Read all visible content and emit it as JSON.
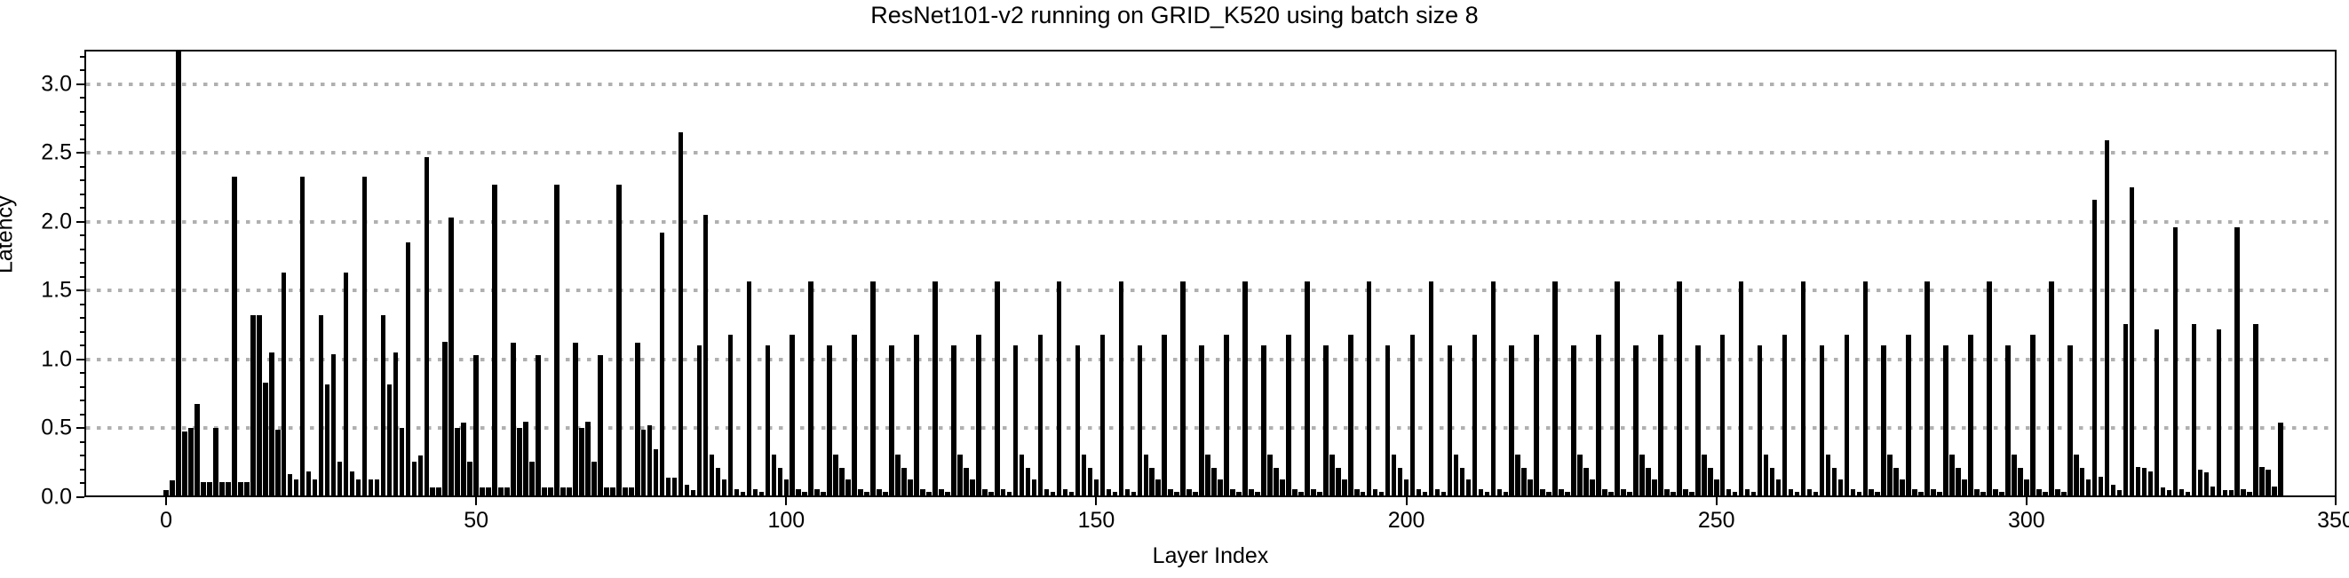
{
  "chart_data": {
    "type": "bar",
    "title": "ResNet101-v2 running on GRID_K520 using batch size 8",
    "xlabel": "Layer Index",
    "ylabel": "Latency",
    "xlim": [
      -13.18,
      350
    ],
    "ylim": [
      0,
      3.25
    ],
    "x_ticks": [
      0,
      50,
      100,
      150,
      200,
      250,
      300,
      350
    ],
    "y_ticks": [
      "0.0",
      "0.5",
      "1.0",
      "1.5",
      "2.0",
      "2.5",
      "3.0"
    ],
    "y_minor_tick_step": 0.1,
    "grid": "horizontal dotted at 0.5 intervals",
    "legend_position": "none",
    "bar_color": "#000000",
    "grid_color": "#b0b0b0",
    "bar_width_units": 0.8,
    "x_start_index": 0,
    "note_clipped_bar": "bar at layer 2 exceeds the y-axis top and is clipped",
    "values": [
      0.05,
      0.12,
      3.45,
      0.48,
      0.5,
      0.68,
      0.11,
      0.11,
      0.5,
      0.11,
      0.11,
      2.33,
      0.11,
      0.11,
      1.32,
      1.32,
      0.83,
      1.05,
      0.49,
      1.63,
      0.17,
      0.13,
      2.33,
      0.19,
      0.13,
      1.32,
      0.82,
      1.04,
      0.26,
      1.63,
      0.19,
      0.13,
      2.33,
      0.13,
      0.13,
      1.32,
      0.82,
      1.05,
      0.5,
      1.85,
      0.26,
      0.3,
      2.47,
      0.07,
      0.07,
      1.13,
      2.03,
      0.5,
      0.54,
      0.26,
      1.03,
      0.07,
      0.07,
      2.27,
      0.07,
      0.07,
      1.12,
      0.5,
      0.55,
      0.26,
      1.03,
      0.07,
      0.07,
      2.27,
      0.07,
      0.07,
      1.12,
      0.5,
      0.55,
      0.26,
      1.03,
      0.07,
      0.07,
      2.27,
      0.07,
      0.07,
      1.12,
      0.49,
      0.52,
      0.35,
      1.92,
      0.14,
      0.14,
      2.65,
      0.09,
      0.05,
      1.1,
      2.05,
      0.31,
      0.21,
      0.13,
      1.18,
      0.06,
      0.04,
      1.57,
      0.06,
      0.04,
      1.1,
      0.31,
      0.21,
      0.13,
      1.18,
      0.06,
      0.04,
      1.57,
      0.06,
      0.04,
      1.1,
      0.31,
      0.21,
      0.13,
      1.18,
      0.06,
      0.04,
      1.57,
      0.06,
      0.04,
      1.1,
      0.31,
      0.21,
      0.13,
      1.18,
      0.06,
      0.04,
      1.57,
      0.06,
      0.04,
      1.1,
      0.31,
      0.21,
      0.13,
      1.18,
      0.06,
      0.04,
      1.57,
      0.06,
      0.04,
      1.1,
      0.31,
      0.21,
      0.13,
      1.18,
      0.06,
      0.04,
      1.57,
      0.06,
      0.04,
      1.1,
      0.31,
      0.21,
      0.13,
      1.18,
      0.06,
      0.04,
      1.57,
      0.06,
      0.04,
      1.1,
      0.31,
      0.21,
      0.13,
      1.18,
      0.06,
      0.04,
      1.57,
      0.06,
      0.04,
      1.1,
      0.31,
      0.21,
      0.13,
      1.18,
      0.06,
      0.04,
      1.57,
      0.06,
      0.04,
      1.1,
      0.31,
      0.21,
      0.13,
      1.18,
      0.06,
      0.04,
      1.57,
      0.06,
      0.04,
      1.1,
      0.31,
      0.21,
      0.13,
      1.18,
      0.06,
      0.04,
      1.57,
      0.06,
      0.04,
      1.1,
      0.31,
      0.21,
      0.13,
      1.18,
      0.06,
      0.04,
      1.57,
      0.06,
      0.04,
      1.1,
      0.31,
      0.21,
      0.13,
      1.18,
      0.06,
      0.04,
      1.57,
      0.06,
      0.04,
      1.1,
      0.31,
      0.21,
      0.13,
      1.18,
      0.06,
      0.04,
      1.57,
      0.06,
      0.04,
      1.1,
      0.31,
      0.21,
      0.13,
      1.18,
      0.06,
      0.04,
      1.57,
      0.06,
      0.04,
      1.1,
      0.31,
      0.21,
      0.13,
      1.18,
      0.06,
      0.04,
      1.57,
      0.06,
      0.04,
      1.1,
      0.31,
      0.21,
      0.13,
      1.18,
      0.06,
      0.04,
      1.57,
      0.06,
      0.04,
      1.1,
      0.31,
      0.21,
      0.13,
      1.18,
      0.06,
      0.04,
      1.57,
      0.06,
      0.04,
      1.1,
      0.31,
      0.21,
      0.13,
      1.18,
      0.06,
      0.04,
      1.57,
      0.06,
      0.04,
      1.1,
      0.31,
      0.21,
      0.13,
      1.18,
      0.06,
      0.04,
      1.57,
      0.06,
      0.04,
      1.1,
      0.31,
      0.21,
      0.13,
      1.18,
      0.06,
      0.04,
      1.57,
      0.06,
      0.04,
      1.1,
      0.31,
      0.21,
      0.13,
      1.18,
      0.06,
      0.04,
      1.57,
      0.06,
      0.04,
      1.1,
      0.31,
      0.21,
      0.13,
      2.16,
      0.15,
      2.59,
      0.09,
      0.05,
      1.26,
      2.25,
      0.22,
      0.21,
      0.19,
      1.22,
      0.07,
      0.05,
      1.96,
      0.06,
      0.04,
      1.26,
      0.2,
      0.18,
      0.08,
      1.22,
      0.05,
      0.05,
      1.96,
      0.06,
      0.04,
      1.26,
      0.22,
      0.2,
      0.08,
      0.54
    ]
  }
}
